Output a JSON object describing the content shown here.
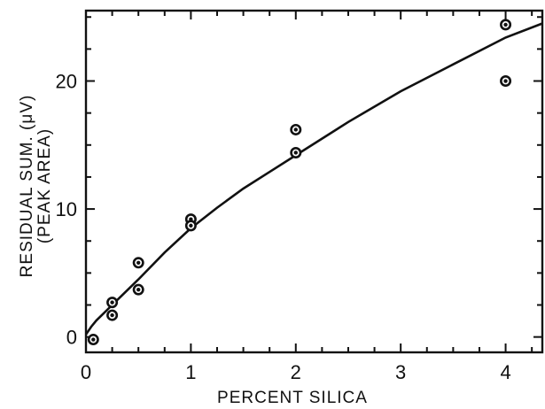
{
  "chart_data": {
    "type": "scatter",
    "title": "",
    "xlabel": "PERCENT  SILICA",
    "ylabel_line1": "RESIDUAL SUM. (μV)",
    "ylabel_line2": "(PEAK AREA)",
    "xlim": [
      0,
      4.35
    ],
    "ylim": [
      -1.2,
      25.5
    ],
    "x_ticks": [
      0,
      1,
      2,
      3,
      4
    ],
    "x_tick_labels": [
      "0",
      "1",
      "2",
      "3",
      "4"
    ],
    "x_minor_step": 0.25,
    "y_ticks": [
      0,
      10,
      20
    ],
    "y_tick_labels": [
      "0",
      "10",
      "20"
    ],
    "y_minor_step": 2.5,
    "grid": false,
    "series": [
      {
        "kind": "points",
        "points": [
          {
            "x": 0.07,
            "y": -0.2
          },
          {
            "x": 0.25,
            "y": 2.7
          },
          {
            "x": 0.25,
            "y": 1.7
          },
          {
            "x": 0.5,
            "y": 5.8
          },
          {
            "x": 0.5,
            "y": 3.7
          },
          {
            "x": 1.0,
            "y": 9.2
          },
          {
            "x": 1.0,
            "y": 8.7
          },
          {
            "x": 2.0,
            "y": 16.2
          },
          {
            "x": 2.0,
            "y": 14.4
          },
          {
            "x": 4.0,
            "y": 24.4
          },
          {
            "x": 4.0,
            "y": 20.0
          }
        ]
      },
      {
        "kind": "fit-curve",
        "points": [
          {
            "x": 0.0,
            "y": 0.2
          },
          {
            "x": 0.05,
            "y": 0.8
          },
          {
            "x": 0.1,
            "y": 1.3
          },
          {
            "x": 0.15,
            "y": 1.7
          },
          {
            "x": 0.25,
            "y": 2.5
          },
          {
            "x": 0.35,
            "y": 3.3
          },
          {
            "x": 0.5,
            "y": 4.5
          },
          {
            "x": 0.75,
            "y": 6.6
          },
          {
            "x": 1.0,
            "y": 8.5
          },
          {
            "x": 1.25,
            "y": 10.1
          },
          {
            "x": 1.5,
            "y": 11.6
          },
          {
            "x": 1.75,
            "y": 12.9
          },
          {
            "x": 2.0,
            "y": 14.2
          },
          {
            "x": 2.5,
            "y": 16.8
          },
          {
            "x": 3.0,
            "y": 19.2
          },
          {
            "x": 3.5,
            "y": 21.3
          },
          {
            "x": 4.0,
            "y": 23.4
          },
          {
            "x": 4.35,
            "y": 24.5
          }
        ]
      }
    ]
  }
}
